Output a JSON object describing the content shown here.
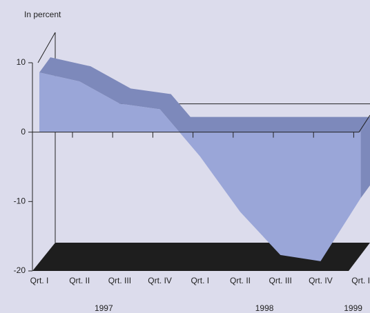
{
  "chart_data": {
    "type": "area3d",
    "y_axis_label": "In percent",
    "categories": [
      "Qrt. I",
      "Qrt. II",
      "Qrt. III",
      "Qrt. IV",
      "Qrt. I",
      "Qrt. II",
      "Qrt. III",
      "Qrt. IV",
      "Qrt. I"
    ],
    "year_labels": [
      "1997",
      "1998",
      "1999"
    ],
    "values": [
      8.6,
      7.3,
      4.1,
      3.3,
      -3.5,
      -11.5,
      -17.7,
      -18.6,
      -9.5
    ],
    "color": "#9aa6d8",
    "top_color": "#7d89bb",
    "floor_color": "#1e1e1e",
    "ylim": [
      -20,
      10
    ],
    "yticks": [
      -20,
      -10,
      0,
      10
    ]
  }
}
